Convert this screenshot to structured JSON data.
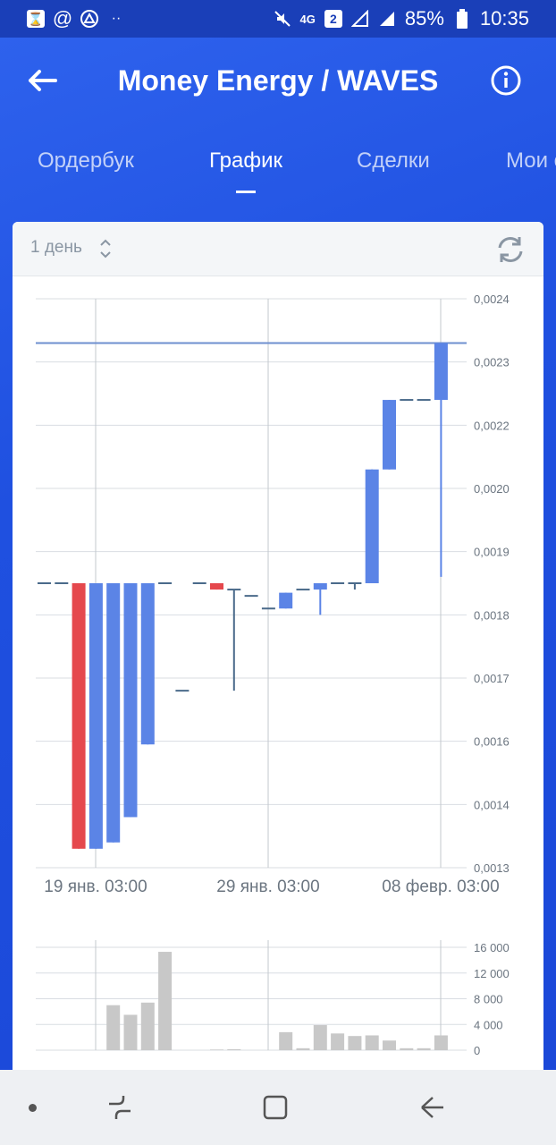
{
  "status_bar": {
    "icons_left": [
      "calendar-icon",
      "at-icon",
      "delta-icon",
      "more-dots-icon"
    ],
    "network": "4G",
    "sim_badge": "2",
    "battery": "85%",
    "time": "10:35"
  },
  "header": {
    "title": "Money Energy / WAVES"
  },
  "tabs": [
    {
      "label": "Ордербук",
      "active": false
    },
    {
      "label": "График",
      "active": true
    },
    {
      "label": "Сделки",
      "active": false
    },
    {
      "label": "Мои с",
      "active": false
    }
  ],
  "toolbar": {
    "interval": "1 день"
  },
  "chart_data": [
    {
      "type": "candlestick",
      "x_tick_labels": [
        "19 янв. 03:00",
        "29 янв. 03:00",
        "08 февр. 03:00"
      ],
      "y_tick_labels": [
        "0,0024",
        "0,0023",
        "0,0022",
        "0,0020",
        "0,0019",
        "0,0018",
        "0,0017",
        "0,0016",
        "0,0014",
        "0,0013"
      ],
      "current_price_line": 0.00233,
      "candles": [
        {
          "open": 0.00185,
          "close": 0.00185,
          "high": 0.00185,
          "low": 0.00185,
          "color": "gray"
        },
        {
          "open": 0.00185,
          "close": 0.00185,
          "high": 0.00185,
          "low": 0.00185,
          "color": "gray"
        },
        {
          "open": 0.00185,
          "close": 0.00133,
          "high": 0.00185,
          "low": 0.00133,
          "color": "#e5484d"
        },
        {
          "open": 0.00133,
          "close": 0.00185,
          "high": 0.00185,
          "low": 0.00133,
          "color": "#5b84e6"
        },
        {
          "open": 0.00134,
          "close": 0.00185,
          "high": 0.00185,
          "low": 0.00134,
          "color": "#5b84e6"
        },
        {
          "open": 0.00138,
          "close": 0.00185,
          "high": 0.00185,
          "low": 0.00138,
          "color": "#5b84e6"
        },
        {
          "open": 0.00159,
          "close": 0.00185,
          "high": 0.00185,
          "low": 0.00159,
          "color": "#5b84e6"
        },
        {
          "open": 0.00185,
          "close": 0.00185,
          "high": 0.00185,
          "low": 0.00185,
          "color": "gray"
        },
        {
          "open": 0.00168,
          "close": 0.00168,
          "high": 0.00168,
          "low": 0.00168,
          "color": "gray"
        },
        {
          "open": 0.00185,
          "close": 0.00185,
          "high": 0.00185,
          "low": 0.00185,
          "color": "gray"
        },
        {
          "open": 0.00185,
          "close": 0.00184,
          "high": 0.00185,
          "low": 0.00184,
          "color": "#e5484d"
        },
        {
          "open": 0.00184,
          "close": 0.00184,
          "high": 0.00184,
          "low": 0.00168,
          "color": "gray"
        },
        {
          "open": 0.00183,
          "close": 0.00183,
          "high": 0.00183,
          "low": 0.00183,
          "color": "gray"
        },
        {
          "open": 0.00181,
          "close": 0.00181,
          "high": 0.00181,
          "low": 0.00181,
          "color": "gray"
        },
        {
          "open": 0.00181,
          "close": 0.001835,
          "high": 0.001835,
          "low": 0.00181,
          "color": "#5b84e6"
        },
        {
          "open": 0.00184,
          "close": 0.00184,
          "high": 0.00184,
          "low": 0.00184,
          "color": "gray"
        },
        {
          "open": 0.00184,
          "close": 0.00185,
          "high": 0.00185,
          "low": 0.0018,
          "color": "#5b84e6"
        },
        {
          "open": 0.00185,
          "close": 0.00185,
          "high": 0.00185,
          "low": 0.00185,
          "color": "gray"
        },
        {
          "open": 0.00185,
          "close": 0.00185,
          "high": 0.00185,
          "low": 0.00184,
          "color": "gray"
        },
        {
          "open": 0.00185,
          "close": 0.00206,
          "high": 0.00206,
          "low": 0.00185,
          "color": "#5b84e6"
        },
        {
          "open": 0.00206,
          "close": 0.00224,
          "high": 0.00224,
          "low": 0.00206,
          "color": "#5b84e6"
        },
        {
          "open": 0.00224,
          "close": 0.00224,
          "high": 0.00224,
          "low": 0.00224,
          "color": "gray"
        },
        {
          "open": 0.00224,
          "close": 0.00224,
          "high": 0.00224,
          "low": 0.00224,
          "color": "gray"
        },
        {
          "open": 0.00224,
          "close": 0.00233,
          "high": 0.00233,
          "low": 0.00186,
          "color": "#5b84e6"
        }
      ]
    },
    {
      "type": "bar",
      "y_tick_labels": [
        "16 000",
        "12 000",
        "8 000",
        "4 000",
        "0"
      ],
      "ylim": [
        0,
        16000
      ],
      "values": [
        0,
        0,
        0,
        0,
        7000,
        5500,
        7400,
        15300,
        0,
        0,
        100,
        150,
        0,
        0,
        2800,
        300,
        3900,
        2600,
        2200,
        2300,
        1500,
        300,
        300,
        2300
      ]
    }
  ]
}
